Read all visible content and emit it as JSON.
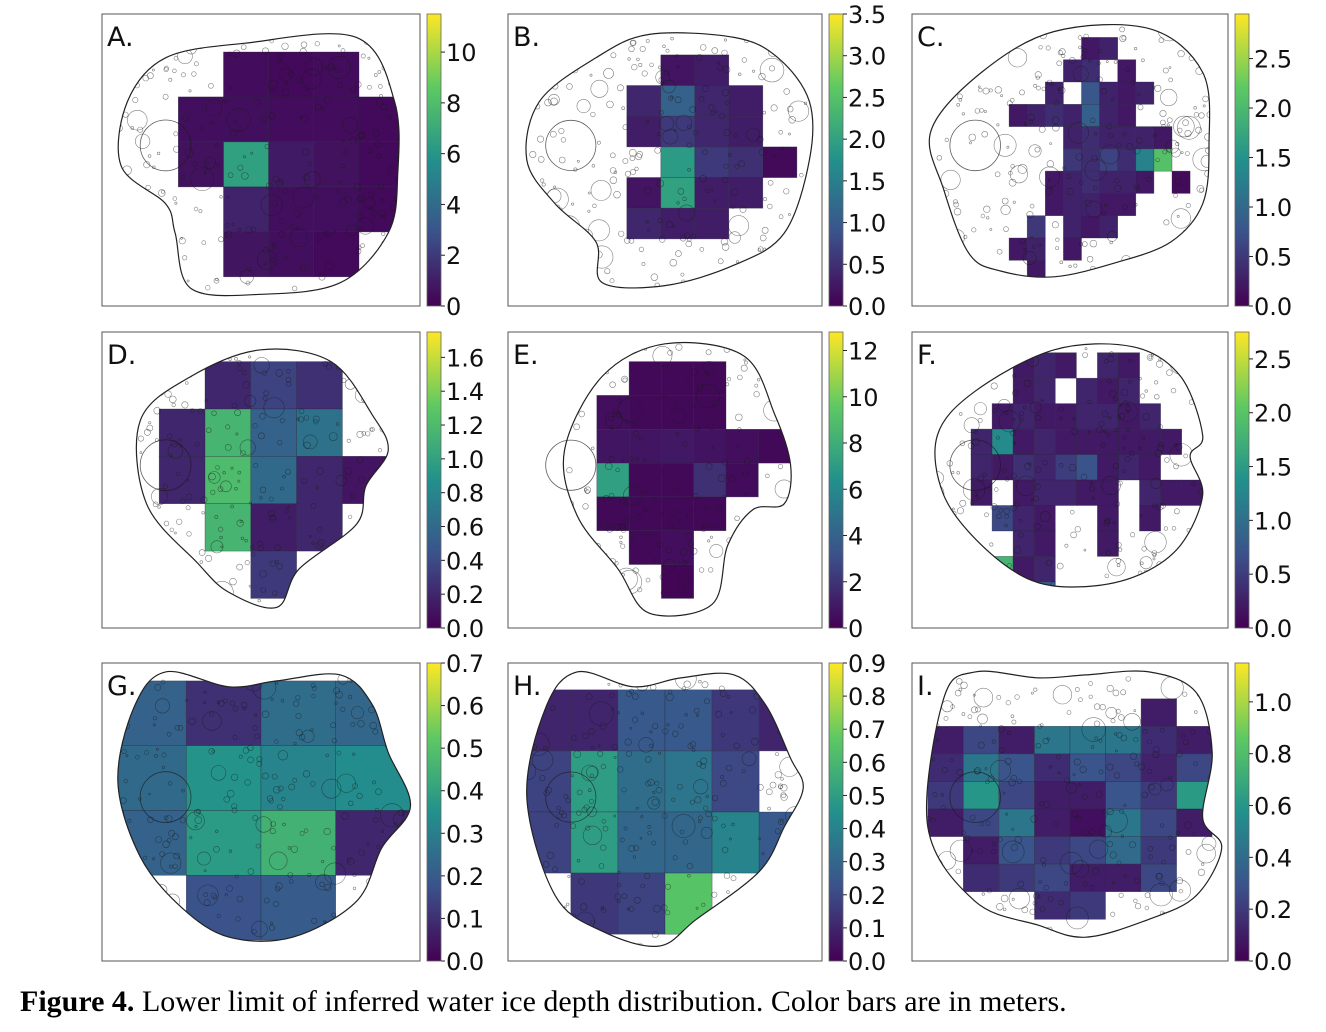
{
  "caption": {
    "figure_label": "Figure 4.",
    "text": " Lower limit of inferred water ice depth distribution. Color bars are in meters."
  },
  "colormap": {
    "name": "viridis",
    "stops": [
      "#440154",
      "#3b528b",
      "#21918c",
      "#5ec962",
      "#fde725"
    ]
  },
  "chart_data": [
    {
      "type": "heatmap",
      "label": "A.",
      "unit": "m",
      "cbar_range": [
        0,
        11.5
      ],
      "cbar_ticks": [
        "0",
        "2",
        "4",
        "6",
        "8",
        "10"
      ],
      "cbar_tick_values": [
        0,
        2,
        4,
        6,
        8,
        10
      ],
      "cell_values": [
        [
          null,
          0.4,
          0.3,
          0.4,
          null
        ],
        [
          0.5,
          0.5,
          0.4,
          0.4,
          0.3
        ],
        [
          0.6,
          6.5,
          0.9,
          0.6,
          0.3
        ],
        [
          null,
          1.2,
          0.5,
          0.5,
          0.3
        ],
        [
          null,
          0.7,
          0.5,
          0.3,
          null
        ]
      ]
    },
    {
      "type": "heatmap",
      "label": "B.",
      "unit": "m",
      "cbar_range": [
        0,
        3.5
      ],
      "cbar_ticks": [
        "0.0",
        "0.5",
        "1.0",
        "1.5",
        "2.0",
        "2.5",
        "3.0",
        "3.5"
      ],
      "cbar_tick_values": [
        0,
        0.5,
        1,
        1.5,
        2,
        2.5,
        3,
        3.5
      ],
      "cell_values": [
        [
          null,
          null,
          0.2,
          0.3,
          null,
          null
        ],
        [
          null,
          0.4,
          1.1,
          0.4,
          0.3,
          null
        ],
        [
          null,
          0.3,
          0.6,
          0.4,
          0.3,
          null
        ],
        [
          null,
          null,
          1.9,
          0.6,
          0.5,
          0.1
        ],
        [
          null,
          0.2,
          2.0,
          0.3,
          0.3,
          null
        ],
        [
          null,
          0.4,
          0.3,
          0.3,
          null,
          null
        ]
      ]
    },
    {
      "type": "heatmap",
      "label": "C.",
      "unit": "m",
      "cbar_range": [
        0,
        2.95
      ],
      "cbar_ticks": [
        "0.0",
        "0.5",
        "1.0",
        "1.5",
        "2.0",
        "2.5"
      ],
      "cbar_tick_values": [
        0,
        0.5,
        1,
        1.5,
        2,
        2.5
      ],
      "cell_values": [
        [
          null,
          null,
          null,
          null,
          null,
          0.2,
          0.3,
          null,
          null,
          null,
          null
        ],
        [
          null,
          null,
          null,
          null,
          0.3,
          0.4,
          null,
          0.2,
          null,
          null,
          null
        ],
        [
          null,
          null,
          null,
          0.3,
          null,
          0.8,
          0.3,
          0.2,
          0.3,
          null,
          null
        ],
        [
          null,
          0.2,
          0.3,
          0.4,
          0.3,
          0.9,
          0.3,
          0.2,
          null,
          null,
          null
        ],
        [
          null,
          null,
          null,
          null,
          0.3,
          0.4,
          0.3,
          0.3,
          0.3,
          0.2,
          null
        ],
        [
          null,
          null,
          null,
          null,
          0.5,
          0.4,
          0.6,
          0.4,
          1.3,
          2.1,
          null
        ],
        [
          null,
          null,
          null,
          0.2,
          0.3,
          0.4,
          0.3,
          0.3,
          0.2,
          null,
          0.1
        ],
        [
          null,
          null,
          null,
          0.2,
          0.3,
          0.3,
          0.2,
          0.2,
          null,
          null,
          null
        ],
        [
          null,
          null,
          0.5,
          null,
          0.3,
          0.2,
          0.3,
          null,
          null,
          null,
          null
        ],
        [
          null,
          0.2,
          0.3,
          null,
          0.2,
          null,
          null,
          null,
          null,
          null,
          null
        ],
        [
          null,
          null,
          0.2,
          null,
          null,
          null,
          null,
          null,
          null,
          null,
          null
        ]
      ]
    },
    {
      "type": "heatmap",
      "label": "D.",
      "unit": "m",
      "cbar_range": [
        0,
        1.75
      ],
      "cbar_ticks": [
        "0.0",
        "0.2",
        "0.4",
        "0.6",
        "0.8",
        "1.0",
        "1.2",
        "1.4",
        "1.6"
      ],
      "cbar_tick_values": [
        0,
        0.2,
        0.4,
        0.6,
        0.8,
        1,
        1.2,
        1.4,
        1.6
      ],
      "cell_values": [
        [
          null,
          0.2,
          0.35,
          0.25,
          null
        ],
        [
          0.2,
          1.15,
          0.55,
          0.65,
          null
        ],
        [
          0.2,
          1.2,
          0.6,
          0.2,
          0.1
        ],
        [
          null,
          1.15,
          0.15,
          0.2,
          null
        ],
        [
          null,
          null,
          0.3,
          null,
          null
        ]
      ]
    },
    {
      "type": "heatmap",
      "label": "E.",
      "unit": "m",
      "cbar_range": [
        0,
        12.8
      ],
      "cbar_ticks": [
        "0",
        "2",
        "4",
        "6",
        "8",
        "10",
        "12"
      ],
      "cbar_tick_values": [
        0,
        2,
        4,
        6,
        8,
        10,
        12
      ],
      "cell_values": [
        [
          null,
          null,
          0.3,
          0.3,
          0.3,
          null,
          null
        ],
        [
          null,
          0.5,
          0.3,
          0.3,
          0.3,
          null,
          null
        ],
        [
          null,
          0.8,
          0.8,
          0.9,
          0.7,
          0.5,
          0.3
        ],
        [
          null,
          7.2,
          0.3,
          0.3,
          1.8,
          0.4,
          null
        ],
        [
          null,
          0.3,
          0.3,
          0.3,
          0.3,
          null,
          null
        ],
        [
          null,
          null,
          0.3,
          0.5,
          null,
          null,
          null
        ],
        [
          null,
          null,
          null,
          0.2,
          null,
          null,
          null
        ]
      ]
    },
    {
      "type": "heatmap",
      "label": "F.",
      "unit": "m",
      "cbar_range": [
        0,
        2.75
      ],
      "cbar_ticks": [
        "0.0",
        "0.5",
        "1.0",
        "1.5",
        "2.0",
        "2.5"
      ],
      "cbar_tick_values": [
        0,
        0.5,
        1,
        1.5,
        2,
        2.5
      ],
      "cell_values": [
        [
          null,
          null,
          null,
          0.2,
          0.3,
          0.2,
          null,
          0.3,
          0.2,
          null,
          null,
          null
        ],
        [
          null,
          null,
          null,
          0.2,
          0.3,
          null,
          0.3,
          0.2,
          0.3,
          null,
          null,
          null
        ],
        [
          null,
          null,
          0.2,
          0.3,
          0.2,
          0.2,
          0.3,
          0.3,
          0.2,
          0.3,
          null,
          null
        ],
        [
          null,
          0.3,
          1.3,
          0.2,
          0.3,
          0.2,
          0.2,
          0.2,
          0.2,
          0.2,
          0.2,
          null
        ],
        [
          null,
          0.3,
          0.2,
          0.4,
          0.3,
          0.5,
          0.7,
          0.2,
          0.3,
          0.2,
          null,
          null
        ],
        [
          null,
          0.2,
          null,
          0.2,
          0.3,
          0.3,
          0.2,
          0.2,
          null,
          0.3,
          0.2,
          0.2
        ],
        [
          null,
          null,
          0.6,
          0.3,
          0.2,
          null,
          null,
          0.2,
          null,
          0.2,
          null,
          null
        ],
        [
          null,
          null,
          null,
          0.3,
          0.2,
          null,
          null,
          0.2,
          null,
          null,
          null,
          null
        ],
        [
          null,
          null,
          1.8,
          0.2,
          0.3,
          null,
          null,
          null,
          null,
          null,
          null,
          null
        ],
        [
          null,
          null,
          null,
          0.2,
          0.8,
          null,
          null,
          null,
          null,
          null,
          null,
          null
        ]
      ]
    },
    {
      "type": "heatmap",
      "label": "G.",
      "unit": "m",
      "cbar_range": [
        0,
        0.7
      ],
      "cbar_ticks": [
        "0.0",
        "0.1",
        "0.2",
        "0.3",
        "0.4",
        "0.5",
        "0.6",
        "0.7"
      ],
      "cbar_tick_values": [
        0,
        0.1,
        0.2,
        0.3,
        0.4,
        0.5,
        0.6,
        0.7
      ],
      "cell_values": [
        [
          0.22,
          0.1,
          0.25,
          0.23
        ],
        [
          0.24,
          0.36,
          0.31,
          0.34
        ],
        [
          0.22,
          0.38,
          0.45,
          0.08
        ],
        [
          null,
          0.18,
          0.2,
          null
        ]
      ]
    },
    {
      "type": "heatmap",
      "label": "H.",
      "unit": "m",
      "cbar_range": [
        0,
        0.9
      ],
      "cbar_ticks": [
        "0.0",
        "0.1",
        "0.2",
        "0.3",
        "0.4",
        "0.5",
        "0.6",
        "0.7",
        "0.8",
        "0.9"
      ],
      "cbar_tick_values": [
        0,
        0.1,
        0.2,
        0.3,
        0.4,
        0.5,
        0.6,
        0.7,
        0.8,
        0.9
      ],
      "cell_values": [
        [
          0.1,
          0.1,
          0.25,
          0.25,
          0.15,
          0.1
        ],
        [
          0.18,
          0.5,
          0.32,
          0.35,
          0.2,
          null
        ],
        [
          0.18,
          0.5,
          0.3,
          0.3,
          0.4,
          0.25
        ],
        [
          null,
          0.15,
          0.18,
          0.65,
          null,
          null
        ]
      ]
    },
    {
      "type": "heatmap",
      "label": "I.",
      "unit": "m",
      "cbar_range": [
        0,
        1.15
      ],
      "cbar_ticks": [
        "0.0",
        "0.2",
        "0.4",
        "0.6",
        "0.8",
        "1.0"
      ],
      "cbar_tick_values": [
        0,
        0.2,
        0.4,
        0.6,
        0.8,
        1.0
      ],
      "cell_values": [
        [
          null,
          null,
          null,
          null,
          null,
          null,
          0.1,
          null
        ],
        [
          0.1,
          0.25,
          0.1,
          0.45,
          0.45,
          0.45,
          0.15,
          0.1
        ],
        [
          0.15,
          0.45,
          0.3,
          0.15,
          0.3,
          0.25,
          0.12,
          0.25
        ],
        [
          0.2,
          0.6,
          0.25,
          0.1,
          0.1,
          0.3,
          0.2,
          0.62
        ],
        [
          0.1,
          0.25,
          0.45,
          0.1,
          0.05,
          0.45,
          0.25,
          0.1
        ],
        [
          null,
          0.1,
          0.3,
          0.2,
          0.25,
          0.4,
          0.2,
          null
        ],
        [
          null,
          0.15,
          0.2,
          0.25,
          0.1,
          0.1,
          0.25,
          null
        ],
        [
          null,
          null,
          null,
          0.15,
          0.2,
          null,
          null,
          null
        ]
      ]
    }
  ]
}
